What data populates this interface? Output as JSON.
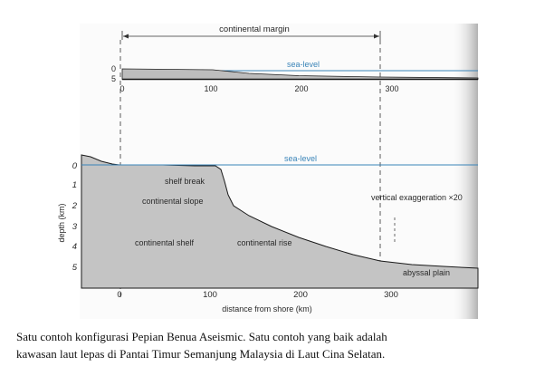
{
  "top_panel": {
    "margin_label": "continental margin",
    "sea_level_label": "sea-level",
    "depth_ticks": [
      "0",
      "5"
    ],
    "distance_ticks": [
      "0",
      "100",
      "200",
      "300"
    ]
  },
  "main_panel": {
    "sea_level_label": "sea-level",
    "depth_ticks": [
      "0",
      "1",
      "2",
      "3",
      "4",
      "5"
    ],
    "y_axis_label": "depth (km)",
    "x_axis_label": "distance from shore (km)",
    "distance_ticks": [
      "0",
      "100",
      "200",
      "300"
    ],
    "annotations": {
      "shelf_break": "shelf break",
      "continental_slope": "continental slope",
      "continental_shelf": "continental shelf",
      "continental_rise": "continental rise",
      "abyssal_plain": "abyssal plain",
      "vertical_exaggeration": "vertical exaggeration ×20"
    }
  },
  "caption": {
    "line1": "Satu contoh konfigurasi Pepian Benua Aseismic. Satu contoh yang baik adalah",
    "line2": "kawasan laut lepas di Pantai Timur Semanjung Malaysia di Laut Cina Selatan."
  },
  "colors": {
    "seabed_fill": "#c4c4c4",
    "sea_level_line": "#3a84b8",
    "page_edge_shadow": "#c9c9c9"
  }
}
